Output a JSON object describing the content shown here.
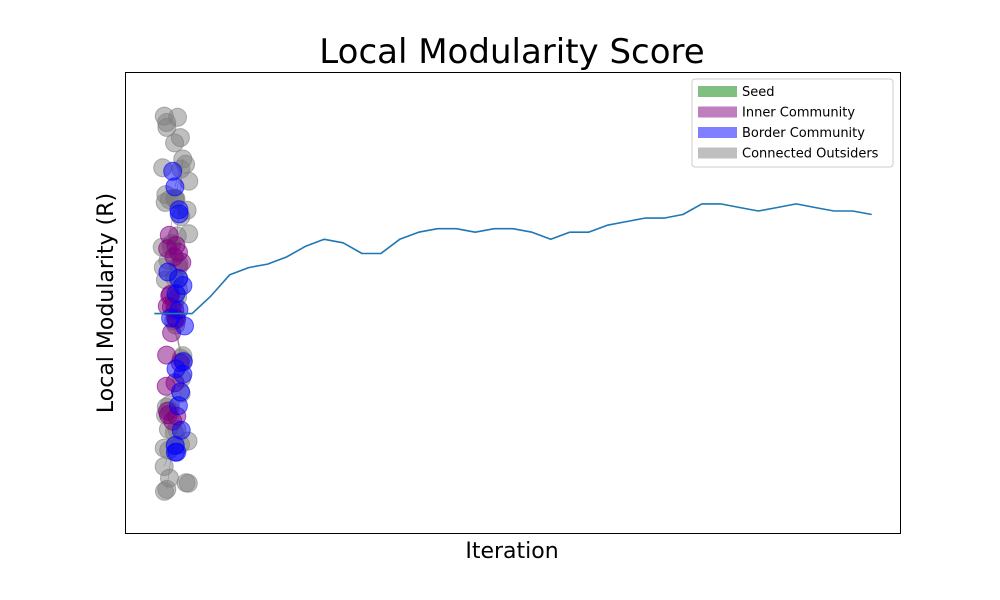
{
  "chart_data": {
    "type": "line",
    "title": "Local Modularity Score",
    "xlabel": "Iteration",
    "ylabel": "Local Modularity (R)",
    "xticks_visible": false,
    "yticks_visible": false,
    "grid": false,
    "legend_position": "top-right",
    "legend": [
      {
        "label": "Seed",
        "color": "#7fbf7f"
      },
      {
        "label": "Inner Community",
        "color": "#bf7fbf"
      },
      {
        "label": "Border Community",
        "color": "#7f7fff"
      },
      {
        "label": "Connected Outsiders",
        "color": "#bfbfbf"
      }
    ],
    "x": [
      0,
      1,
      2,
      3,
      4,
      5,
      6,
      7,
      8,
      9,
      10,
      11,
      12,
      13,
      14,
      15,
      16,
      17,
      18,
      19,
      20,
      21,
      22,
      23,
      24,
      25,
      26,
      27,
      28,
      29,
      30,
      31,
      32,
      33,
      34,
      35,
      36,
      37,
      38
    ],
    "series": [
      {
        "color": "#1f77b4",
        "values": [
          0.12,
          0.12,
          0.12,
          0.17,
          0.23,
          0.25,
          0.26,
          0.28,
          0.31,
          0.33,
          0.32,
          0.29,
          0.29,
          0.33,
          0.35,
          0.36,
          0.36,
          0.35,
          0.36,
          0.36,
          0.35,
          0.33,
          0.35,
          0.35,
          0.37,
          0.38,
          0.39,
          0.39,
          0.4,
          0.43,
          0.43,
          0.42,
          0.41,
          0.42,
          0.43,
          0.42,
          0.41,
          0.41,
          0.4
        ]
      }
    ],
    "ylim": [
      -0.5,
      0.8
    ],
    "xlim": [
      -1.5,
      39.5
    ],
    "overlay_network": {
      "description_colors": {
        "seed": "#008000",
        "inner": "#800080",
        "border": "#0000ff",
        "outsider": "#808080"
      },
      "node_counts": {
        "inner": 22,
        "border": 20,
        "outsider": 60
      }
    }
  }
}
